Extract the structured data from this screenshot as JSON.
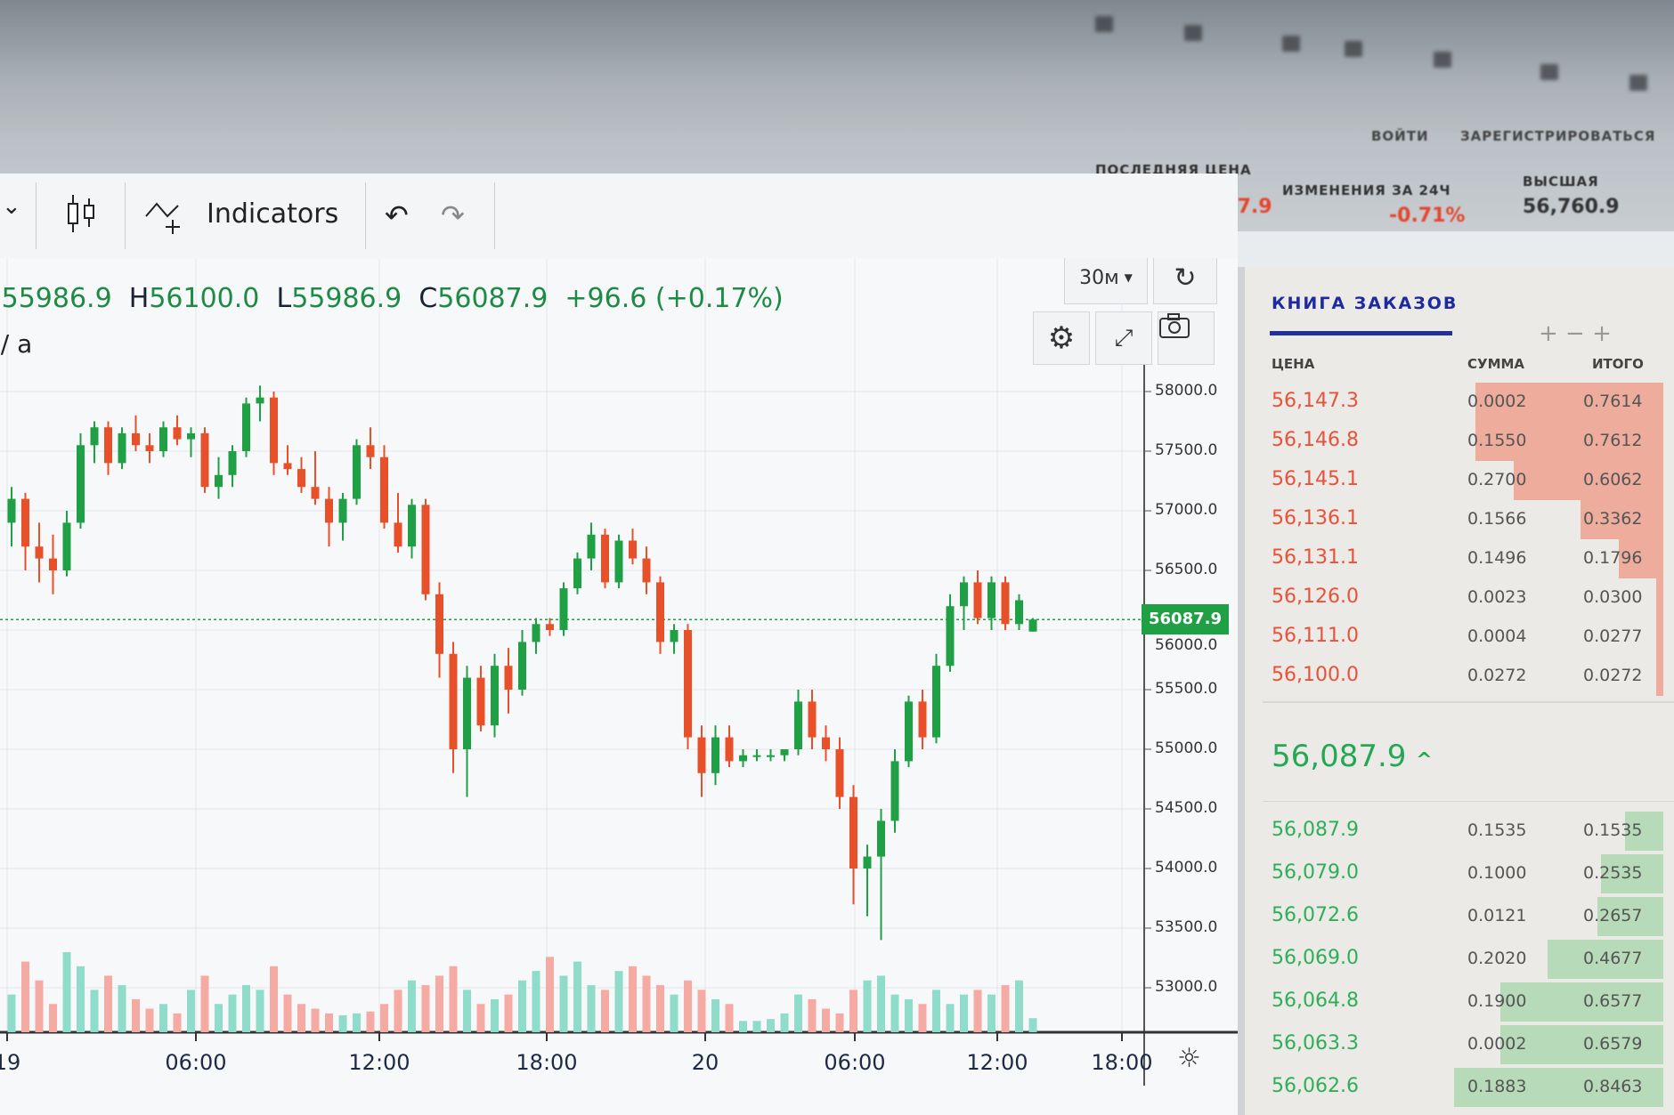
{
  "header": {
    "login_label": "ВОЙТИ",
    "register_label": "ЗАРЕГИСТРИРОВАТЬСЯ",
    "stats": [
      {
        "label": "ПОСЛЕДНЯЯ ЦЕНА",
        "value": "56,087.9",
        "color": "#e5452e"
      },
      {
        "label": "ИЗМЕНЕНИЯ ЗА 24Ч",
        "value": "-0.71%",
        "color": "#e5452e"
      },
      {
        "label": "ВЫСШАЯ",
        "value": "56,760.9",
        "color": "#333333"
      }
    ]
  },
  "toolbar": {
    "indicators_label": "Indicators",
    "interval_label": "30м",
    "icons": [
      "chevron-down-icon",
      "candlestick-icon",
      "indicators-icon",
      "undo-icon",
      "redo-icon",
      "refresh-icon",
      "gear-icon",
      "fullscreen-icon",
      "camera-icon"
    ]
  },
  "ohlc": {
    "open_key": "O",
    "open": "55986.9",
    "high_key": "H",
    "high": "56100.0",
    "low_key": "L",
    "low": "55986.9",
    "close_key": "C",
    "close": "56087.9",
    "change": "+96.6 (+0.17%)",
    "sublabel": "Vol / a"
  },
  "chart_data": {
    "type": "candlestick",
    "title": "",
    "ylim": [
      52800,
      58300
    ],
    "y_ticks": [
      "58000.0",
      "57500.0",
      "57000.0",
      "56500.0",
      "56000.0",
      "55500.0",
      "55000.0",
      "54500.0",
      "54000.0",
      "53500.0",
      "53000.0"
    ],
    "x_ticks": [
      "19",
      "06:00",
      "12:00",
      "18:00",
      "20",
      "06:00",
      "12:00",
      "18:00"
    ],
    "interval": "30м",
    "last_price": 56087.9,
    "last_price_label": "56087.9",
    "colors": {
      "up": "#1fa045",
      "down": "#e8502a",
      "vol_up": "#8fdccb",
      "vol_down": "#f5aaa3"
    },
    "candles": [
      [
        56900,
        57200,
        56700,
        57100
      ],
      [
        57100,
        57150,
        56500,
        56700
      ],
      [
        56700,
        56900,
        56400,
        56600
      ],
      [
        56600,
        56800,
        56300,
        56500
      ],
      [
        56500,
        57000,
        56450,
        56900
      ],
      [
        56900,
        57650,
        56850,
        57550
      ],
      [
        57550,
        57750,
        57400,
        57700
      ],
      [
        57700,
        57750,
        57300,
        57400
      ],
      [
        57400,
        57700,
        57350,
        57650
      ],
      [
        57650,
        57800,
        57500,
        57550
      ],
      [
        57550,
        57650,
        57400,
        57500
      ],
      [
        57500,
        57750,
        57450,
        57700
      ],
      [
        57700,
        57800,
        57550,
        57600
      ],
      [
        57600,
        57700,
        57450,
        57650
      ],
      [
        57650,
        57700,
        57150,
        57200
      ],
      [
        57200,
        57450,
        57100,
        57300
      ],
      [
        57300,
        57550,
        57200,
        57500
      ],
      [
        57500,
        57950,
        57450,
        57900
      ],
      [
        57900,
        58050,
        57750,
        57950
      ],
      [
        57950,
        58000,
        57300,
        57400
      ],
      [
        57400,
        57550,
        57300,
        57350
      ],
      [
        57350,
        57450,
        57150,
        57200
      ],
      [
        57200,
        57500,
        57050,
        57100
      ],
      [
        57100,
        57200,
        56700,
        56900
      ],
      [
        56900,
        57150,
        56750,
        57100
      ],
      [
        57100,
        57600,
        57050,
        57550
      ],
      [
        57550,
        57700,
        57350,
        57450
      ],
      [
        57450,
        57550,
        56850,
        56900
      ],
      [
        56900,
        57150,
        56650,
        56700
      ],
      [
        56700,
        57100,
        56600,
        57050
      ],
      [
        57050,
        57100,
        56250,
        56300
      ],
      [
        56300,
        56400,
        55600,
        55800
      ],
      [
        55800,
        55900,
        54800,
        55000
      ],
      [
        55000,
        55700,
        54600,
        55600
      ],
      [
        55600,
        55700,
        55150,
        55200
      ],
      [
        55200,
        55800,
        55100,
        55700
      ],
      [
        55700,
        55850,
        55300,
        55500
      ],
      [
        55500,
        56000,
        55450,
        55900
      ],
      [
        55900,
        56100,
        55800,
        56050
      ],
      [
        56050,
        56100,
        55950,
        56000
      ],
      [
        56000,
        56400,
        55950,
        56350
      ],
      [
        56350,
        56650,
        56300,
        56600
      ],
      [
        56600,
        56900,
        56500,
        56800
      ],
      [
        56800,
        56850,
        56350,
        56400
      ],
      [
        56400,
        56800,
        56350,
        56750
      ],
      [
        56750,
        56850,
        56550,
        56600
      ],
      [
        56600,
        56700,
        56300,
        56400
      ],
      [
        56400,
        56450,
        55800,
        55900
      ],
      [
        55900,
        56050,
        55800,
        56000
      ],
      [
        56000,
        56050,
        55000,
        55100
      ],
      [
        55100,
        55200,
        54600,
        54800
      ],
      [
        54800,
        55200,
        54700,
        55100
      ],
      [
        55100,
        55200,
        54850,
        54900
      ],
      [
        54900,
        55000,
        54850,
        54950
      ],
      [
        54950,
        55000,
        54900,
        54950
      ],
      [
        54950,
        55000,
        54900,
        54950
      ],
      [
        54950,
        55000,
        54900,
        55000
      ],
      [
        55000,
        55500,
        54950,
        55400
      ],
      [
        55400,
        55500,
        55000,
        55100
      ],
      [
        55100,
        55200,
        54900,
        55000
      ],
      [
        55000,
        55100,
        54500,
        54600
      ],
      [
        54600,
        54700,
        53700,
        54000
      ],
      [
        54000,
        54200,
        53600,
        54100
      ],
      [
        54100,
        54500,
        53400,
        54400
      ],
      [
        54400,
        55000,
        54300,
        54900
      ],
      [
        54900,
        55450,
        54850,
        55400
      ],
      [
        55400,
        55500,
        55000,
        55100
      ],
      [
        55100,
        55800,
        55050,
        55700
      ],
      [
        55700,
        56300,
        55650,
        56200
      ],
      [
        56200,
        56450,
        56000,
        56400
      ],
      [
        56400,
        56500,
        56050,
        56100
      ],
      [
        56100,
        56450,
        56000,
        56400
      ],
      [
        56400,
        56450,
        56000,
        56050
      ],
      [
        56050,
        56300,
        56000,
        56250
      ],
      [
        55986.9,
        56100.0,
        55986.9,
        56087.9
      ]
    ],
    "volumes": [
      40,
      75,
      55,
      30,
      85,
      70,
      45,
      60,
      50,
      35,
      25,
      30,
      20,
      45,
      60,
      30,
      40,
      50,
      45,
      70,
      40,
      30,
      25,
      20,
      18,
      20,
      22,
      30,
      45,
      55,
      50,
      60,
      70,
      45,
      30,
      35,
      40,
      55,
      65,
      80,
      60,
      75,
      50,
      45,
      65,
      70,
      60,
      50,
      40,
      55,
      45,
      35,
      30,
      12,
      12,
      14,
      20,
      40,
      35,
      25,
      20,
      45,
      55,
      60,
      40,
      35,
      30,
      45,
      30,
      40,
      45,
      40,
      50,
      55,
      15
    ]
  },
  "order_book": {
    "title": "КНИГА ЗАКАЗОВ",
    "columns": [
      "ЦЕНА",
      "СУММА",
      "ИТОГО"
    ],
    "asks": [
      {
        "price": "56,147.3",
        "amount": "0.0002",
        "total": "0.7614"
      },
      {
        "price": "56,146.8",
        "amount": "0.1550",
        "total": "0.7612"
      },
      {
        "price": "56,145.1",
        "amount": "0.2700",
        "total": "0.6062"
      },
      {
        "price": "56,136.1",
        "amount": "0.1566",
        "total": "0.3362"
      },
      {
        "price": "56,131.1",
        "amount": "0.1496",
        "total": "0.1796"
      },
      {
        "price": "56,126.0",
        "amount": "0.0023",
        "total": "0.0300"
      },
      {
        "price": "56,111.0",
        "amount": "0.0004",
        "total": "0.0277"
      },
      {
        "price": "56,100.0",
        "amount": "0.0272",
        "total": "0.0272"
      }
    ],
    "mid_price": "56,087.9",
    "mid_arrow": "^",
    "bids": [
      {
        "price": "56,087.9",
        "amount": "0.1535",
        "total": "0.1535"
      },
      {
        "price": "56,079.0",
        "amount": "0.1000",
        "total": "0.2535"
      },
      {
        "price": "56,072.6",
        "amount": "0.0121",
        "total": "0.2657"
      },
      {
        "price": "56,069.0",
        "amount": "0.2020",
        "total": "0.4677"
      },
      {
        "price": "56,064.8",
        "amount": "0.1900",
        "total": "0.6577"
      },
      {
        "price": "56,063.3",
        "amount": "0.0002",
        "total": "0.6579"
      },
      {
        "price": "56,062.6",
        "amount": "0.1883",
        "total": "0.8463"
      }
    ],
    "ask_color": "#e8523a",
    "bid_color": "#2fae5a"
  }
}
